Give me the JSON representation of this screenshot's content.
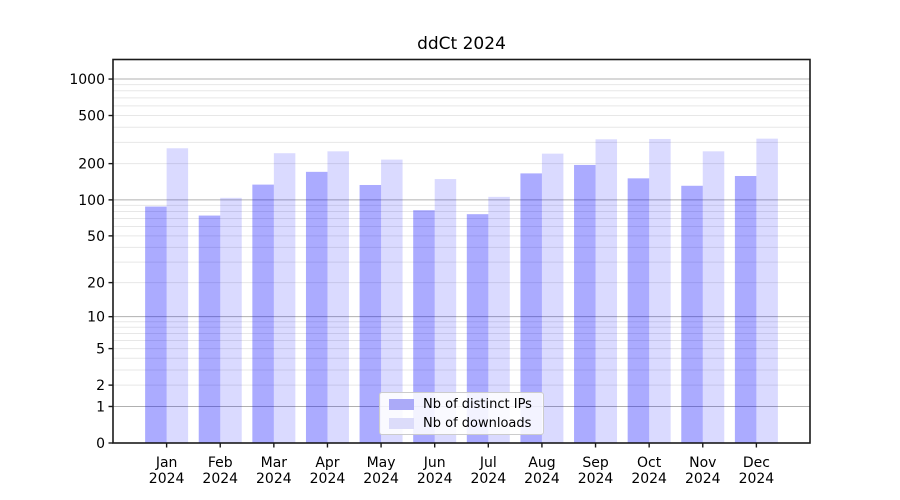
{
  "title": "ddCt 2024",
  "chart_data": {
    "type": "bar",
    "title": "ddCt 2024",
    "xlabel": "",
    "ylabel": "",
    "yscale": "log1p",
    "ylim": [
      0,
      1450
    ],
    "yticks": [
      0,
      1,
      2,
      5,
      10,
      20,
      50,
      100,
      200,
      500,
      1000
    ],
    "grid": true,
    "legend_position": "lower center",
    "categories": [
      "Jan 2024",
      "Feb 2024",
      "Mar 2024",
      "Apr 2024",
      "May 2024",
      "Jun 2024",
      "Jul 2024",
      "Aug 2024",
      "Sep 2024",
      "Oct 2024",
      "Nov 2024",
      "Dec 2024"
    ],
    "series": [
      {
        "name": "Nb of distinct IPs",
        "color": "rgba(0,0,255,0.33)",
        "swatch_hex": "#abaaf8",
        "values": [
          88,
          74,
          134,
          171,
          133,
          82,
          76,
          166,
          195,
          151,
          131,
          158
        ]
      },
      {
        "name": "Nb of downloads",
        "color": "rgba(0,0,255,0.145)",
        "swatch_hex": "#dcdcfa",
        "values": [
          268,
          104,
          244,
          253,
          216,
          149,
          106,
          242,
          318,
          320,
          253,
          322
        ]
      }
    ],
    "colors": {
      "background": "#ffffff",
      "axis_spine": "#1a1a1a",
      "grid_major": "#b0b0b0",
      "grid_minor": "#e7e7e7",
      "tick_text": "#000000"
    }
  }
}
